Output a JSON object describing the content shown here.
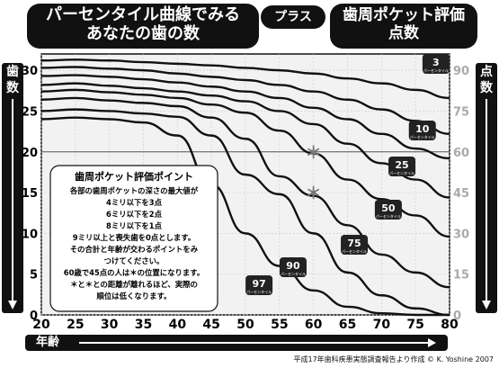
{
  "header": {
    "title_line1": "パーセンタイル曲線でみる",
    "title_line2": "あなたの歯の数",
    "plus": "プラス",
    "pocket_line1": "歯周ポケット評価",
    "pocket_line2": "点数"
  },
  "axis_left_label": [
    "歯",
    "数"
  ],
  "axis_right_label": [
    "点",
    "数"
  ],
  "xlabel": "年齢",
  "source": "平成17年歯科疾患実態調査報告より作成 © K. Yoshine 2007",
  "legend_box": {
    "title": "歯周ポケット評価ポイント",
    "lines": [
      "各部の歯周ポケットの深さの最大値が",
      "4ミリ以下を3点",
      "6ミリ以下を2点",
      "8ミリ以下を1点",
      "9ミリ以上と喪失歯を0点とします。",
      "その合計と年齢が交わるポイントをみ",
      "つけてください。",
      "60歳で45点の人は＊の位置になります。",
      "＊と＊との距離が離れるほど、実際の",
      "順位は低くなります。"
    ]
  },
  "chart_data": {
    "type": "line",
    "x_ticks": [
      20,
      25,
      30,
      35,
      40,
      45,
      50,
      55,
      60,
      65,
      70,
      75,
      80
    ],
    "y_left_ticks": [
      0,
      5,
      10,
      15,
      20,
      25,
      30
    ],
    "y_right_ticks": [
      0,
      15,
      30,
      45,
      60,
      75,
      90
    ],
    "xlim": [
      20,
      80
    ],
    "ylim_left": [
      0,
      32
    ],
    "ylim_right": [
      0,
      96
    ],
    "reference_line_y": 20,
    "x": [
      20,
      25,
      30,
      35,
      40,
      45,
      50,
      55,
      60,
      65,
      70,
      75,
      80
    ],
    "series": [
      {
        "name": "3",
        "label_sub": "パーセンタイル",
        "values": [
          31.2,
          31.3,
          31.2,
          31.0,
          30.8,
          30.6,
          30.3,
          30.0,
          29.6,
          29.0,
          28.4,
          27.6,
          26.6
        ]
      },
      {
        "name": "",
        "values": [
          30.3,
          30.4,
          30.2,
          30.0,
          29.6,
          29.2,
          28.8,
          28.2,
          27.4,
          26.4,
          25.2,
          23.8,
          22.2
        ]
      },
      {
        "name": "10",
        "label_sub": "パーセンタイル",
        "values": [
          29.3,
          29.4,
          29.2,
          28.9,
          28.5,
          28.0,
          27.4,
          26.6,
          25.4,
          24.0,
          22.2,
          20.4,
          19.2
        ]
      },
      {
        "name": "25",
        "label_sub": "パーセンタイル",
        "values": [
          28.2,
          28.4,
          28.1,
          27.8,
          27.4,
          26.9,
          26.2,
          25.0,
          23.4,
          21.0,
          18.6,
          16.6,
          14.4
        ]
      },
      {
        "name": "50",
        "label_sub": "パーセンタイル",
        "values": [
          27.4,
          27.6,
          27.3,
          27.0,
          26.6,
          25.8,
          24.8,
          22.6,
          19.8,
          16.6,
          14.2,
          12.2,
          9.6
        ]
      },
      {
        "name": "75",
        "label_sub": "パーセンタイル",
        "values": [
          26.4,
          26.6,
          26.3,
          26.0,
          25.6,
          24.2,
          21.6,
          17.0,
          14.6,
          11.0,
          7.4,
          5.2,
          3.4
        ]
      },
      {
        "name": "90",
        "label_sub": "パーセンタイル",
        "values": [
          25.0,
          25.2,
          25.0,
          24.7,
          24.3,
          22.0,
          17.2,
          14.8,
          10.0,
          5.2,
          2.4,
          0.8,
          0
        ]
      },
      {
        "name": "97",
        "label_sub": "パーセンタイル",
        "values": [
          24.0,
          24.2,
          24.0,
          23.6,
          22.0,
          16.0,
          10.0,
          6.0,
          3.0,
          1.0,
          0.2,
          0,
          0
        ]
      }
    ],
    "markers": [
      {
        "x": 60,
        "y": 20
      },
      {
        "x": 60,
        "y": 15
      }
    ]
  }
}
